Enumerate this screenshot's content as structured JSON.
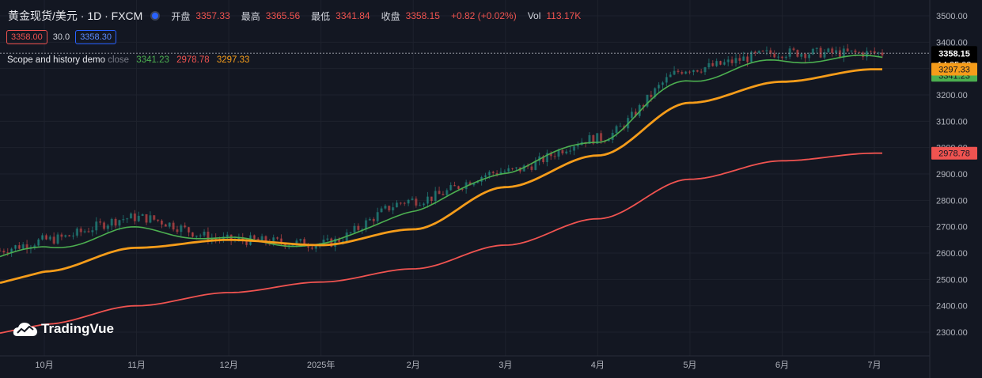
{
  "header": {
    "symbol": "黄金现货/美元 · 1D · FXCM",
    "open_label": "开盘",
    "open": "3357.33",
    "high_label": "最高",
    "high": "3365.56",
    "low_label": "最低",
    "low": "3341.84",
    "close_label": "收盘",
    "close": "3358.15",
    "change": "+0.82 (+0.02%)",
    "vol_label": "Vol",
    "vol": "113.17K"
  },
  "quote": {
    "bid": "3358.00",
    "spread": "30.0",
    "ask": "3358.30"
  },
  "indicator": {
    "name": "Scope and history demo",
    "source": "close",
    "values": [
      "3341.23",
      "2978.78",
      "3297.33"
    ]
  },
  "price_axis": {
    "ticks": [
      "3500.00",
      "3400.00",
      "3300.00",
      "3200.00",
      "3100.00",
      "3000.00",
      "2900.00",
      "2800.00",
      "2700.00",
      "2600.00",
      "2500.00",
      "2400.00",
      "2300.00"
    ],
    "last_price": "3358.15",
    "countdown": "14:25:03",
    "labels": [
      {
        "text": "3341.23",
        "value": 3341.23,
        "color": "#4caf50"
      },
      {
        "text": "3297.33",
        "value": 3297.33,
        "color": "#f59c1a"
      },
      {
        "text": "2978.78",
        "value": 2978.78,
        "color": "#ef5350"
      }
    ]
  },
  "time_axis": {
    "ticks": [
      "10月",
      "11月",
      "12月",
      "2025年",
      "2月",
      "3月",
      "4月",
      "5月",
      "6月",
      "7月"
    ]
  },
  "branding": {
    "logo_text": "TradingVue"
  },
  "colors": {
    "up": "#26a69a",
    "down": "#ef5350",
    "background": "#131722",
    "ma_fast": "#4caf50",
    "ma_mid": "#f59c1a",
    "ma_slow": "#ef5350"
  },
  "chart_data": {
    "type": "line",
    "title": "黄金现货/美元 · 1D · FXCM",
    "ylim": [
      2250,
      3510
    ],
    "x": [
      "10月",
      "11月",
      "12月",
      "2025年",
      "2月",
      "3月",
      "4月",
      "5月",
      "6月",
      "7月"
    ],
    "series": [
      {
        "name": "close",
        "values": [
          2650,
          2735,
          2650,
          2635,
          2800,
          2910,
          3035,
          3300,
          3360,
          3358
        ]
      },
      {
        "values": [
          2620,
          2690,
          2650,
          2630,
          2760,
          2910,
          3030,
          3260,
          3330,
          3341.23
        ]
      },
      {
        "values": [
          2530,
          2620,
          2650,
          2630,
          2690,
          2850,
          2970,
          3170,
          3250,
          3297.33
        ]
      },
      {
        "values": [
          2330,
          2400,
          2450,
          2490,
          2540,
          2630,
          2730,
          2880,
          2950,
          2978.78
        ]
      }
    ]
  }
}
